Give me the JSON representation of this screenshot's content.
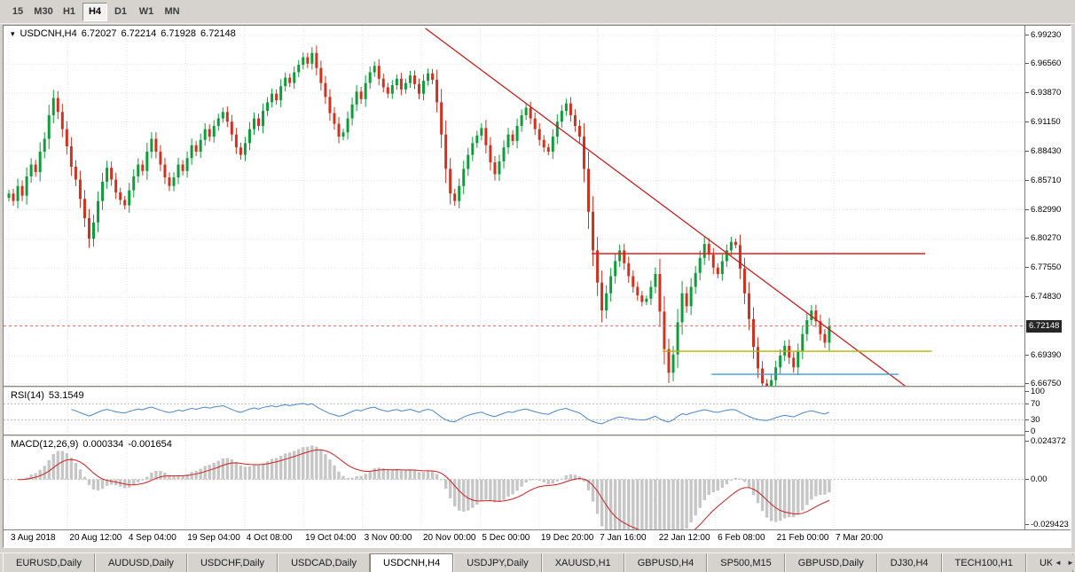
{
  "toolbar": {
    "timeframes": [
      {
        "label": "15",
        "active": false
      },
      {
        "label": "M30",
        "active": false
      },
      {
        "label": "H1",
        "active": false
      },
      {
        "label": "H4",
        "active": true
      },
      {
        "label": "D1",
        "active": false
      },
      {
        "label": "W1",
        "active": false
      },
      {
        "label": "MN",
        "active": false
      }
    ]
  },
  "chart": {
    "symbol_line": {
      "symbol": "USDCNH,H4",
      "open": "6.72027",
      "high": "6.72214",
      "low": "6.71928",
      "close": "6.72148"
    },
    "current_price_label": "6.72148"
  },
  "chart_data": {
    "type": "candlestick",
    "symbol": "USDCNH",
    "timeframe": "H4",
    "ohlc_current": {
      "open": 6.72027,
      "high": 6.72214,
      "low": 6.71928,
      "close": 6.72148
    },
    "y_axis": {
      "labels": [
        "6.99230",
        "6.96560",
        "6.93870",
        "6.91150",
        "6.88430",
        "6.85710",
        "6.82990",
        "6.80270",
        "6.77550",
        "6.74830",
        "6.69390",
        "6.66750"
      ],
      "min": 6.6675,
      "max": 6.9923
    },
    "x_labels": [
      "3 Aug 2018",
      "20 Aug 12:00",
      "4 Sep 04:00",
      "19 Sep 04:00",
      "4 Oct 08:00",
      "19 Oct 04:00",
      "3 Nov 00:00",
      "20 Nov 00:00",
      "5 Dec 00:00",
      "19 Dec 20:00",
      "7 Jan 16:00",
      "22 Jan 12:00",
      "6 Feb 08:00",
      "21 Feb 00:00",
      "7 Mar 20:00"
    ],
    "closes": [
      6.845,
      6.838,
      6.852,
      6.843,
      6.861,
      6.872,
      6.865,
      6.884,
      6.896,
      6.918,
      6.934,
      6.921,
      6.905,
      6.889,
      6.87,
      6.858,
      6.84,
      6.822,
      6.803,
      6.818,
      6.838,
      6.856,
      6.869,
      6.858,
      6.846,
      6.839,
      6.834,
      6.848,
      6.861,
      6.872,
      6.866,
      6.884,
      6.896,
      6.884,
      6.872,
      6.86,
      6.852,
      6.86,
      6.872,
      6.866,
      6.878,
      6.89,
      6.884,
      6.895,
      6.905,
      6.898,
      6.908,
      6.915,
      6.921,
      6.912,
      6.9,
      6.888,
      6.881,
      6.892,
      6.905,
      6.915,
      6.908,
      6.922,
      6.93,
      6.938,
      6.932,
      6.945,
      6.953,
      6.948,
      6.958,
      6.965,
      6.972,
      6.966,
      6.976,
      6.962,
      6.948,
      6.935,
      6.92,
      6.91,
      6.898,
      6.902,
      6.915,
      6.928,
      6.94,
      6.933,
      6.948,
      6.958,
      6.964,
      6.952,
      6.944,
      6.938,
      6.946,
      6.952,
      6.942,
      6.948,
      6.955,
      6.947,
      6.938,
      6.95,
      6.957,
      6.951,
      6.93,
      6.9,
      6.868,
      6.845,
      6.838,
      6.852,
      6.868,
      6.881,
      6.892,
      6.899,
      6.906,
      6.89,
      6.874,
      6.863,
      6.875,
      6.888,
      6.9,
      6.894,
      6.908,
      6.918,
      6.925,
      6.915,
      6.905,
      6.895,
      6.888,
      6.884,
      6.898,
      6.912,
      6.922,
      6.929,
      6.918,
      6.908,
      6.898,
      6.868,
      6.828,
      6.792,
      6.762,
      6.736,
      6.752,
      6.768,
      6.782,
      6.792,
      6.78,
      6.768,
      6.758,
      6.75,
      6.744,
      6.747,
      6.758,
      6.77,
      6.735,
      6.7,
      6.678,
      6.695,
      6.725,
      6.752,
      6.74,
      6.758,
      6.771,
      6.785,
      6.798,
      6.788,
      6.776,
      6.77,
      6.782,
      6.792,
      6.8,
      6.797,
      6.775,
      6.752,
      6.728,
      6.702,
      6.682,
      6.668,
      6.662,
      6.671,
      6.683,
      6.694,
      6.703,
      6.692,
      6.683,
      6.698,
      6.714,
      6.727,
      6.736,
      6.726,
      6.714,
      6.706,
      6.7215
    ],
    "colors": {
      "bull": "#0f9d3a",
      "bear": "#d0321f",
      "grid": "#e2e2e2",
      "bid_line": "#e06666"
    },
    "objects": {
      "trendline": {
        "i1": 93.4,
        "p1": 6.999,
        "i2": 202.5,
        "p2": 6.661,
        "color": "#cc1111"
      },
      "hlines": [
        {
          "price": 6.789,
          "i1": 130.7,
          "i2": 205.5,
          "color": "#e02020"
        },
        {
          "price": 6.698,
          "i1": 146.6,
          "i2": 207,
          "color": "#b3b300"
        },
        {
          "price": 6.6765,
          "i1": 157.6,
          "i2": 199.5,
          "color": "#3a9fd8"
        }
      ]
    },
    "indicators": {
      "rsi": {
        "label": "RSI(14)",
        "value": "53.1549",
        "period": 14,
        "color": "#4a86c8",
        "levels": [
          {
            "label": "100",
            "value": 100
          },
          {
            "label": "70",
            "value": 70
          },
          {
            "label": "30",
            "value": 30
          },
          {
            "label": "0",
            "value": 0
          }
        ]
      },
      "macd": {
        "label": "MACD(12,26,9)",
        "value_main": "0.000334",
        "value_signal": "-0.001654",
        "fast": 12,
        "slow": 26,
        "signal": 9,
        "hist_color": "#c6c6c6",
        "signal_color": "#d02020",
        "axis": [
          {
            "label": "0.024372",
            "value": 0.024372
          },
          {
            "label": "0.00",
            "value": 0
          },
          {
            "label": "-0.029423",
            "value": -0.029423
          }
        ]
      }
    }
  },
  "tabs": {
    "items": [
      {
        "label": "EURUSD,Daily",
        "active": false
      },
      {
        "label": "AUDUSD,Daily",
        "active": false
      },
      {
        "label": "USDCHF,Daily",
        "active": false
      },
      {
        "label": "USDCAD,Daily",
        "active": false
      },
      {
        "label": "USDCNH,H4",
        "active": true
      },
      {
        "label": "USDJPY,Daily",
        "active": false
      },
      {
        "label": "XAUUSD,H1",
        "active": false
      },
      {
        "label": "GBPUSD,H4",
        "active": false
      },
      {
        "label": "SP500,M15",
        "active": false
      },
      {
        "label": "GBPUSD,Daily",
        "active": false
      },
      {
        "label": "DJ30,H4",
        "active": false
      },
      {
        "label": "TECH100,H1",
        "active": false
      },
      {
        "label": "UKC",
        "active": false
      }
    ],
    "scroll_left": "◄",
    "scroll_right": "►"
  }
}
